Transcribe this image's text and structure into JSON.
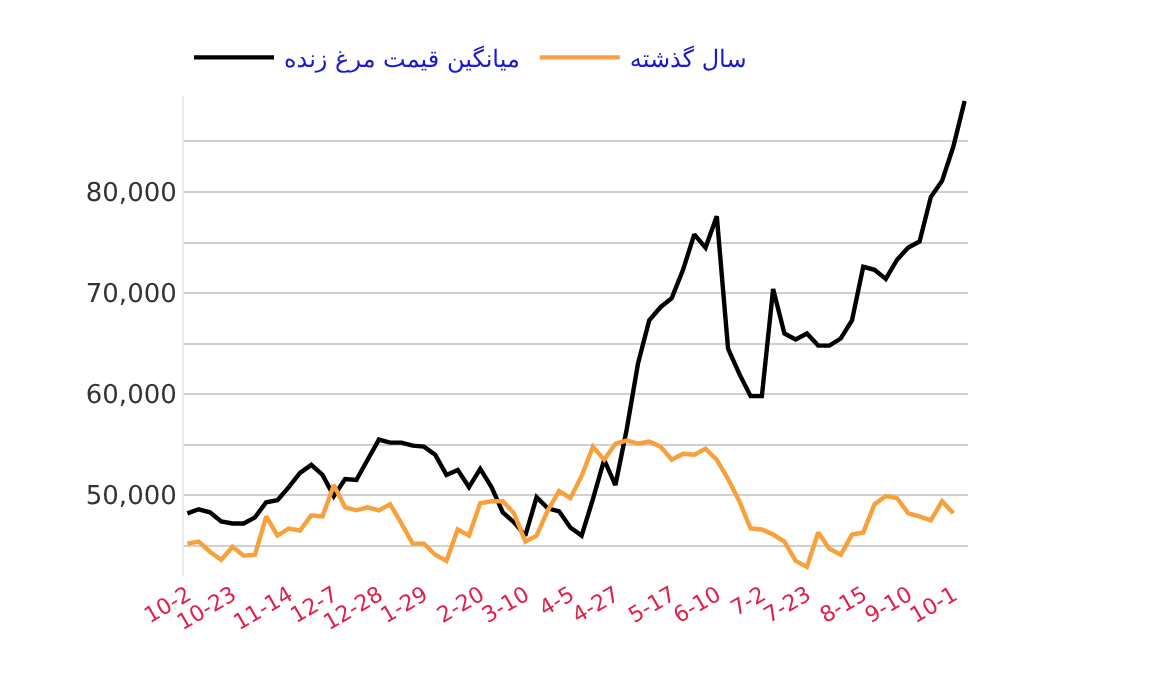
{
  "chart_data": {
    "type": "line",
    "categories": [
      "10-2",
      null,
      null,
      null,
      "10-23",
      null,
      null,
      null,
      null,
      "11-14",
      null,
      null,
      null,
      "12-7",
      null,
      null,
      null,
      "12-28",
      null,
      null,
      null,
      "1-29",
      null,
      null,
      null,
      null,
      "2-20",
      null,
      null,
      null,
      "3-10",
      null,
      null,
      null,
      "4-5",
      null,
      null,
      null,
      "4-27",
      null,
      null,
      null,
      null,
      "5-17",
      null,
      null,
      null,
      "6-10",
      null,
      null,
      null,
      "7-2",
      null,
      null,
      null,
      "7-23",
      null,
      null,
      null,
      null,
      "8-15",
      null,
      null,
      null,
      "9-10",
      null,
      null,
      null,
      "10-1",
      null
    ],
    "series": [
      {
        "name": "میانگین قیمت مرغ زنده",
        "color": "#000000",
        "values": [
          48200,
          48600,
          48300,
          47400,
          47200,
          47200,
          47800,
          49300,
          49500,
          50800,
          52200,
          53000,
          52000,
          49900,
          51600,
          51500,
          53500,
          55500,
          55200,
          55200,
          54900,
          54800,
          54000,
          52000,
          52500,
          50800,
          52600,
          50800,
          48300,
          47300,
          46000,
          49800,
          48700,
          48400,
          46800,
          46000,
          49600,
          53500,
          51000,
          56500,
          63000,
          67300,
          68600,
          69500,
          72300,
          75800,
          74500,
          77600,
          64500,
          62000,
          59800,
          59800,
          70400,
          66000,
          65400,
          66000,
          64800,
          64800,
          65500,
          67300,
          72600,
          72300,
          71400,
          73300,
          74500,
          75100,
          79500,
          81100,
          84500,
          89000
        ]
      },
      {
        "name": "سال گذشته",
        "color": "#f7a03c",
        "values": [
          45200,
          45400,
          44400,
          43600,
          44900,
          44000,
          44100,
          47900,
          46000,
          46700,
          46500,
          48000,
          47900,
          51000,
          48800,
          48500,
          48800,
          48500,
          49100,
          47200,
          45200,
          45200,
          44100,
          43500,
          46600,
          46000,
          49200,
          49400,
          49400,
          48200,
          45400,
          46000,
          48500,
          50400,
          49700,
          51900,
          54800,
          53500,
          55100,
          55400,
          55100,
          55300,
          54800,
          53500,
          54100,
          54000,
          54600,
          53500,
          51600,
          49400,
          46700,
          46600,
          46100,
          45400,
          43500,
          42900,
          46300,
          44700,
          44100,
          46100,
          46300,
          49100,
          49900,
          49700,
          48200,
          47900,
          47500,
          49400,
          48200,
          null
        ]
      }
    ],
    "ylim": [
      42000,
      89500
    ],
    "yticks": [
      {
        "value": 45000,
        "label": null
      },
      {
        "value": 50000,
        "label": "50,000"
      },
      {
        "value": 55000,
        "label": null
      },
      {
        "value": 60000,
        "label": "60,000"
      },
      {
        "value": 65000,
        "label": null
      },
      {
        "value": 70000,
        "label": "70,000"
      },
      {
        "value": 75000,
        "label": null
      },
      {
        "value": 80000,
        "label": "80,000"
      },
      {
        "value": 85000,
        "label": null
      }
    ],
    "grid": "y",
    "legend": "top left",
    "marker": "none",
    "line_style": "solid"
  }
}
